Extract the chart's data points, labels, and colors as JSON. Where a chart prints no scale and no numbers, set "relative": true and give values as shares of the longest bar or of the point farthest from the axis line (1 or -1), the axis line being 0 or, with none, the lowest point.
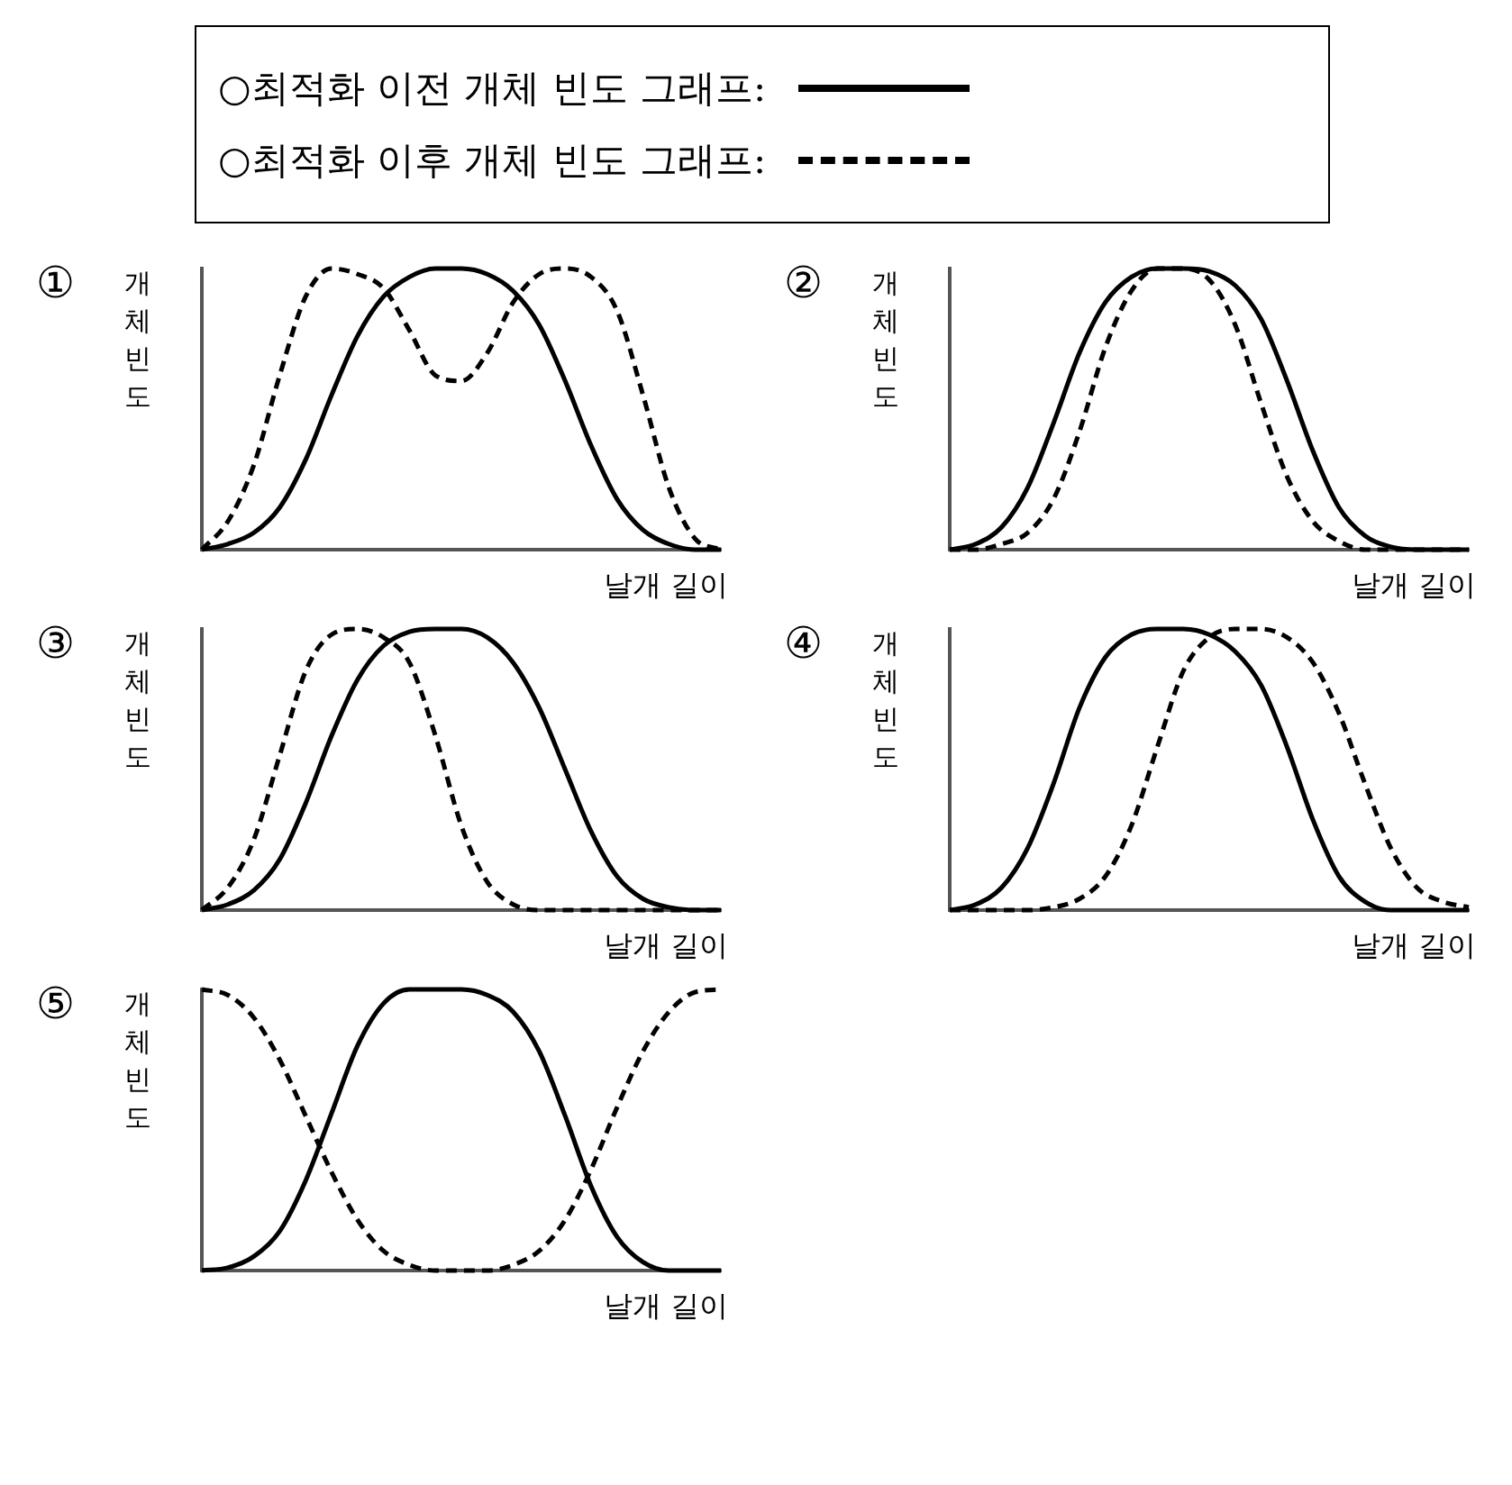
{
  "chart_data": [
    {
      "type": "line",
      "title": "①",
      "xlabel": "날개 길이",
      "ylabel": "개체 빈도",
      "relative": true,
      "legend": "top",
      "categories": [
        null,
        null,
        null,
        null,
        null,
        null,
        null,
        null,
        null,
        null,
        null,
        null,
        null,
        null,
        null,
        null,
        null,
        null,
        null,
        null,
        null
      ],
      "series": [
        {
          "name": "○최적화 이전 개체 빈도 그래프:",
          "color": "#000000",
          "line_style": "solid",
          "values": [
            0,
            0.02,
            0.06,
            0.15,
            0.32,
            0.55,
            0.76,
            0.9,
            0.97,
            1,
            1,
            0.98,
            0.92,
            0.8,
            0.6,
            0.37,
            0.18,
            0.07,
            0.02,
            0,
            0
          ]
        },
        {
          "name": "○최적화 이후 개체 빈도 그래프:",
          "color": "#000000",
          "line_style": "dashed",
          "values": [
            0,
            0.1,
            0.3,
            0.62,
            0.9,
            1,
            0.98,
            0.93,
            0.78,
            0.62,
            0.6,
            0.7,
            0.88,
            0.98,
            1,
            0.97,
            0.85,
            0.55,
            0.22,
            0.04,
            0
          ]
        }
      ]
    },
    {
      "type": "line",
      "title": "②",
      "xlabel": "날개 길이",
      "ylabel": "개체 빈도",
      "relative": true,
      "categories": [
        null,
        null,
        null,
        null,
        null,
        null,
        null,
        null,
        null,
        null,
        null,
        null,
        null,
        null,
        null,
        null,
        null,
        null,
        null,
        null,
        null
      ],
      "series": [
        {
          "color": "#000000",
          "line_style": "solid",
          "values": [
            0,
            0.02,
            0.08,
            0.22,
            0.45,
            0.7,
            0.88,
            0.97,
            1,
            1,
            0.99,
            0.94,
            0.82,
            0.6,
            0.35,
            0.15,
            0.05,
            0.01,
            0,
            0,
            0
          ]
        },
        {
          "color": "#000000",
          "line_style": "dashed",
          "values": [
            0,
            0,
            0.02,
            0.06,
            0.18,
            0.42,
            0.72,
            0.92,
            1,
            1,
            0.96,
            0.8,
            0.52,
            0.26,
            0.1,
            0.03,
            0,
            0,
            0,
            0,
            0
          ]
        }
      ]
    },
    {
      "type": "line",
      "title": "③",
      "xlabel": "날개 길이",
      "ylabel": "개체 빈도",
      "relative": true,
      "categories": [
        null,
        null,
        null,
        null,
        null,
        null,
        null,
        null,
        null,
        null,
        null,
        null,
        null,
        null,
        null,
        null,
        null,
        null,
        null,
        null,
        null
      ],
      "series": [
        {
          "color": "#000000",
          "line_style": "solid",
          "values": [
            0,
            0.02,
            0.07,
            0.18,
            0.38,
            0.62,
            0.82,
            0.94,
            0.99,
            1,
            1,
            0.97,
            0.88,
            0.72,
            0.5,
            0.28,
            0.12,
            0.04,
            0.01,
            0,
            0
          ]
        },
        {
          "color": "#000000",
          "line_style": "dashed",
          "values": [
            0,
            0.08,
            0.25,
            0.55,
            0.85,
            0.98,
            1,
            0.97,
            0.88,
            0.62,
            0.3,
            0.1,
            0.02,
            0,
            0,
            0,
            0,
            0,
            0,
            0,
            0
          ]
        }
      ]
    },
    {
      "type": "line",
      "title": "④",
      "xlabel": "날개 길이",
      "ylabel": "개체 빈도",
      "relative": true,
      "categories": [
        null,
        null,
        null,
        null,
        null,
        null,
        null,
        null,
        null,
        null,
        null,
        null,
        null,
        null,
        null,
        null,
        null,
        null,
        null,
        null,
        null
      ],
      "series": [
        {
          "color": "#000000",
          "line_style": "solid",
          "values": [
            0,
            0.02,
            0.08,
            0.22,
            0.45,
            0.72,
            0.9,
            0.98,
            1,
            1,
            0.98,
            0.92,
            0.8,
            0.58,
            0.32,
            0.12,
            0.03,
            0,
            0,
            0,
            0
          ]
        },
        {
          "color": "#000000",
          "line_style": "dashed",
          "values": [
            0,
            0,
            0,
            0,
            0.01,
            0.04,
            0.12,
            0.3,
            0.58,
            0.85,
            0.97,
            1,
            1,
            0.97,
            0.88,
            0.7,
            0.45,
            0.22,
            0.08,
            0.03,
            0.01
          ]
        }
      ]
    },
    {
      "type": "line",
      "title": "⑤",
      "xlabel": "날개 길이",
      "ylabel": "개체 빈도",
      "relative": true,
      "categories": [
        null,
        null,
        null,
        null,
        null,
        null,
        null,
        null,
        null,
        null,
        null,
        null,
        null,
        null,
        null,
        null,
        null,
        null,
        null,
        null,
        null
      ],
      "series": [
        {
          "color": "#000000",
          "line_style": "solid",
          "values": [
            0,
            0.01,
            0.05,
            0.14,
            0.32,
            0.56,
            0.8,
            0.95,
            1,
            1,
            1,
            0.98,
            0.92,
            0.78,
            0.55,
            0.3,
            0.12,
            0.03,
            0,
            0,
            0
          ]
        },
        {
          "color": "#000000",
          "line_style": "dashed",
          "values": [
            1,
            0.98,
            0.9,
            0.75,
            0.55,
            0.35,
            0.18,
            0.07,
            0.02,
            0,
            0,
            0,
            0.02,
            0.07,
            0.18,
            0.36,
            0.58,
            0.78,
            0.92,
            0.99,
            1
          ]
        }
      ]
    }
  ]
}
